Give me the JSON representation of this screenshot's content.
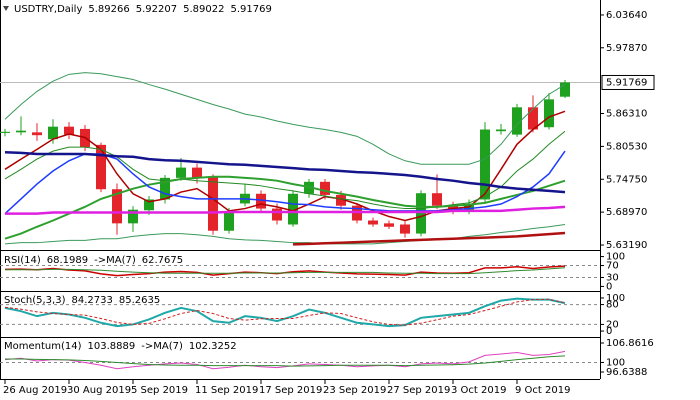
{
  "chart_data": [
    {
      "type": "candlestick",
      "title": "USDTRY,Daily",
      "up_color": "#1fa01f",
      "down_color": "#e3242b",
      "categories": [
        "26 Aug 2019",
        null,
        null,
        null,
        "30 Aug 2019",
        null,
        null,
        null,
        "5 Sep 2019",
        null,
        null,
        null,
        "11 Sep 2019",
        null,
        null,
        null,
        "17 Sep 2019",
        null,
        null,
        null,
        "23 Sep 2019",
        null,
        null,
        null,
        "27 Sep 2019",
        null,
        null,
        null,
        "3 Oct 2019",
        null,
        null,
        null,
        "9 Oct 2019",
        null,
        null,
        null
      ],
      "open": [
        5.829,
        5.83,
        5.83,
        5.818,
        5.84,
        5.836,
        5.808,
        5.73,
        5.67,
        5.693,
        5.712,
        5.75,
        5.768,
        5.752,
        5.657,
        5.705,
        5.722,
        5.696,
        5.668,
        5.722,
        5.743,
        5.72,
        5.701,
        5.675,
        5.67,
        5.668,
        5.652,
        5.723,
        5.701,
        5.692,
        5.712,
        5.832,
        5.826,
        5.874,
        5.839,
        5.89266
      ],
      "high": [
        5.836,
        5.858,
        5.846,
        5.853,
        5.848,
        5.843,
        5.812,
        5.74,
        5.7,
        5.718,
        5.755,
        5.785,
        5.775,
        5.756,
        5.697,
        5.74,
        5.728,
        5.705,
        5.728,
        5.748,
        5.748,
        5.727,
        5.706,
        5.68,
        5.675,
        5.675,
        5.728,
        5.756,
        5.708,
        5.712,
        5.848,
        5.845,
        5.88,
        5.895,
        5.899,
        5.92207
      ],
      "low": [
        5.823,
        5.825,
        5.815,
        5.81,
        5.818,
        5.797,
        5.725,
        5.65,
        5.655,
        5.685,
        5.705,
        5.745,
        5.74,
        5.65,
        5.652,
        5.7,
        5.69,
        5.668,
        5.664,
        5.715,
        5.712,
        5.694,
        5.67,
        5.664,
        5.66,
        5.645,
        5.647,
        5.695,
        5.686,
        5.686,
        5.705,
        5.826,
        5.822,
        5.83,
        5.835,
        5.89022
      ],
      "close": [
        5.831,
        5.833,
        5.825,
        5.84,
        5.826,
        5.804,
        5.73,
        5.67,
        5.694,
        5.712,
        5.75,
        5.768,
        5.75,
        5.657,
        5.69,
        5.722,
        5.696,
        5.675,
        5.722,
        5.743,
        5.72,
        5.701,
        5.675,
        5.668,
        5.664,
        5.652,
        5.723,
        5.701,
        5.692,
        5.704,
        5.835,
        5.835,
        5.874,
        5.835,
        5.888,
        5.91769
      ],
      "series": [
        {
          "color": "#3a9a5a",
          "width": 1,
          "values": [
            5.853,
            5.879,
            5.902,
            5.92,
            5.932,
            5.935,
            5.933,
            5.928,
            5.923,
            5.914,
            5.906,
            5.897,
            5.888,
            5.879,
            5.871,
            5.862,
            5.857,
            5.85,
            5.844,
            5.839,
            5.835,
            5.83,
            5.823,
            5.809,
            5.792,
            5.78,
            5.774,
            5.774,
            5.774,
            5.774,
            5.783,
            5.809,
            5.844,
            5.871,
            5.897,
            5.914
          ]
        },
        {
          "color": "#3a9a5a",
          "width": 1,
          "values": [
            5.634,
            5.636,
            5.636,
            5.638,
            5.64,
            5.64,
            5.643,
            5.643,
            5.647,
            5.65,
            5.652,
            5.652,
            5.65,
            5.647,
            5.643,
            5.641,
            5.64,
            5.638,
            5.636,
            5.636,
            5.634,
            5.634,
            5.634,
            5.634,
            5.636,
            5.638,
            5.64,
            5.641,
            5.643,
            5.647,
            5.65,
            5.654,
            5.657,
            5.661,
            5.664,
            5.668
          ]
        },
        {
          "color": "#b00000",
          "width": 1.5,
          "values": [
            5.765,
            5.783,
            5.8,
            5.818,
            5.827,
            5.821,
            5.8,
            5.757,
            5.722,
            5.708,
            5.713,
            5.725,
            5.731,
            5.713,
            5.692,
            5.696,
            5.704,
            5.699,
            5.692,
            5.704,
            5.717,
            5.713,
            5.704,
            5.692,
            5.682,
            5.675,
            5.682,
            5.692,
            5.696,
            5.699,
            5.722,
            5.765,
            5.809,
            5.835,
            5.857,
            5.867
          ]
        },
        {
          "color": "#228b22",
          "width": 1,
          "values": [
            5.748,
            5.765,
            5.783,
            5.797,
            5.804,
            5.804,
            5.8,
            5.787,
            5.765,
            5.748,
            5.745,
            5.748,
            5.745,
            5.743,
            5.741,
            5.739,
            5.736,
            5.731,
            5.727,
            5.722,
            5.718,
            5.713,
            5.71,
            5.704,
            5.699,
            5.696,
            5.696,
            5.699,
            5.703,
            5.706,
            5.717,
            5.734,
            5.762,
            5.783,
            5.809,
            5.832
          ]
        },
        {
          "color": "#2ea02e",
          "width": 2,
          "values": [
            5.643,
            5.652,
            5.664,
            5.675,
            5.687,
            5.699,
            5.713,
            5.722,
            5.731,
            5.738,
            5.743,
            5.748,
            5.75,
            5.752,
            5.752,
            5.75,
            5.748,
            5.745,
            5.739,
            5.734,
            5.727,
            5.722,
            5.717,
            5.711,
            5.706,
            5.701,
            5.699,
            5.699,
            5.701,
            5.703,
            5.706,
            5.713,
            5.72,
            5.727,
            5.736,
            5.745
          ]
        },
        {
          "color": "#1e3cff",
          "width": 1.5,
          "values": [
            5.687,
            5.713,
            5.739,
            5.762,
            5.78,
            5.792,
            5.792,
            5.783,
            5.757,
            5.734,
            5.722,
            5.717,
            5.713,
            5.713,
            5.713,
            5.713,
            5.711,
            5.708,
            5.704,
            5.703,
            5.699,
            5.697,
            5.696,
            5.694,
            5.692,
            5.692,
            5.692,
            5.692,
            5.694,
            5.696,
            5.699,
            5.704,
            5.717,
            5.734,
            5.757,
            5.797
          ]
        },
        {
          "color": "#14148c",
          "width": 2.5,
          "values": [
            5.795,
            5.794,
            5.792,
            5.792,
            5.792,
            5.792,
            5.79,
            5.788,
            5.787,
            5.783,
            5.781,
            5.78,
            5.778,
            5.776,
            5.774,
            5.773,
            5.771,
            5.769,
            5.767,
            5.765,
            5.764,
            5.762,
            5.76,
            5.759,
            5.757,
            5.755,
            5.752,
            5.748,
            5.745,
            5.741,
            5.738,
            5.734,
            5.731,
            5.729,
            5.727,
            5.725
          ]
        },
        {
          "color": "#e020e0",
          "width": 2.5,
          "values": [
            5.687,
            5.687,
            5.687,
            5.689,
            5.689,
            5.689,
            5.689,
            5.689,
            5.689,
            5.689,
            5.689,
            5.689,
            5.689,
            5.689,
            5.69,
            5.69,
            5.69,
            5.69,
            5.69,
            5.69,
            5.69,
            5.69,
            5.69,
            5.69,
            5.69,
            5.69,
            5.69,
            5.69,
            5.692,
            5.692,
            5.692,
            5.692,
            5.694,
            5.696,
            5.697,
            5.699
          ]
        },
        {
          "color": "#b01010",
          "width": 2.5,
          "values": [
            null,
            null,
            null,
            null,
            null,
            null,
            null,
            null,
            null,
            null,
            null,
            null,
            null,
            null,
            null,
            null,
            null,
            null,
            5.633,
            5.634,
            5.635,
            5.636,
            5.637,
            5.638,
            5.639,
            5.64,
            5.641,
            5.642,
            5.643,
            5.644,
            5.645,
            5.646,
            5.647,
            5.649,
            5.651,
            5.653
          ]
        }
      ],
      "ylim": [
        5.6249,
        6.0627
      ],
      "yticks": [
        {
          "value": 6.0364,
          "label": "6.03640"
        },
        {
          "value": 5.9787,
          "label": "5.97870"
        },
        {
          "value": 5.8631,
          "label": "5.86310"
        },
        {
          "value": 5.8053,
          "label": "5.80530"
        },
        {
          "value": 5.7475,
          "label": "5.74750"
        },
        {
          "value": 5.6897,
          "label": "5.68970"
        },
        {
          "value": 5.6319,
          "label": "5.63190"
        }
      ],
      "grid": false
    },
    {
      "type": "line",
      "grid": true,
      "ylim": [
        -12,
        112
      ],
      "yticks": [
        100,
        70,
        30,
        0
      ],
      "series": [
        {
          "name": "RSI(14)",
          "color": "#cc0000",
          "width": 1.5,
          "values": [
            57,
            58,
            56,
            60,
            55,
            52,
            42,
            36,
            40,
            43,
            48,
            50,
            47,
            38,
            43,
            48,
            46,
            43,
            49,
            52,
            48,
            45,
            42,
            41,
            40,
            38,
            48,
            45,
            44,
            46,
            62,
            62,
            66,
            60,
            65,
            68.1989
          ]
        },
        {
          "name": "->MA(7)",
          "color": "#2e8b2e",
          "width": 1,
          "values": [
            56,
            56,
            56,
            57,
            57,
            56,
            54,
            51,
            48,
            46,
            44,
            44,
            44,
            44,
            44,
            45,
            45,
            45,
            46,
            47,
            47,
            47,
            47,
            47,
            45,
            44,
            44,
            43,
            43,
            43,
            46,
            49,
            53,
            55,
            59,
            62.7675
          ]
        }
      ]
    },
    {
      "type": "line",
      "grid": true,
      "ylim": [
        -15,
        115
      ],
      "yticks": [
        100,
        80,
        20,
        0
      ],
      "series": [
        {
          "name": "Stoch(5,3,3)",
          "color": "#20a8a8",
          "width": 2,
          "values": [
            70,
            60,
            45,
            55,
            50,
            40,
            25,
            15,
            20,
            35,
            55,
            70,
            60,
            30,
            25,
            45,
            40,
            30,
            45,
            65,
            55,
            40,
            25,
            20,
            15,
            18,
            40,
            45,
            50,
            55,
            75,
            92,
            98,
            95,
            95,
            84.2733
          ]
        },
        {
          "color": "#d02020",
          "width": 1,
          "dash": true,
          "values": [
            72,
            66,
            58,
            53,
            50,
            48,
            38,
            26,
            20,
            23,
            37,
            53,
            62,
            53,
            38,
            33,
            37,
            38,
            38,
            47,
            55,
            53,
            40,
            28,
            20,
            18,
            24,
            34,
            45,
            50,
            62,
            75,
            88,
            95,
            96,
            85.2635
          ]
        }
      ]
    },
    {
      "type": "line",
      "grid": true,
      "ylim": [
        94.52,
        108.27
      ],
      "yticks": [
        106.8616,
        100,
        96.6388
      ],
      "series": [
        {
          "name": "Momentum(14)",
          "color": "#e040c0",
          "width": 1,
          "values": [
            101,
            101.5,
            100.5,
            101,
            100.8,
            100,
            99,
            97.8,
            98.5,
            99,
            99.5,
            99.8,
            99.3,
            97.8,
            98.3,
            99,
            98.5,
            98.2,
            98.8,
            99.5,
            99.3,
            99,
            98.5,
            98.8,
            99,
            98.5,
            99.5,
            99.8,
            99.5,
            100.2,
            102.5,
            103,
            103.5,
            102.5,
            102.8,
            103.8889
          ]
        },
        {
          "name": "->MA(7)",
          "color": "#2e8b2e",
          "width": 1,
          "values": [
            101.2,
            101.2,
            101.1,
            101,
            100.9,
            100.7,
            100.4,
            100,
            99.6,
            99.3,
            99.1,
            99,
            99,
            98.9,
            98.9,
            98.9,
            98.9,
            98.9,
            98.7,
            98.8,
            98.9,
            99,
            99,
            99,
            99,
            98.9,
            99,
            99.1,
            99.2,
            99.4,
            99.8,
            100.4,
            101,
            101.5,
            102,
            102.3252
          ]
        }
      ]
    }
  ]
}
